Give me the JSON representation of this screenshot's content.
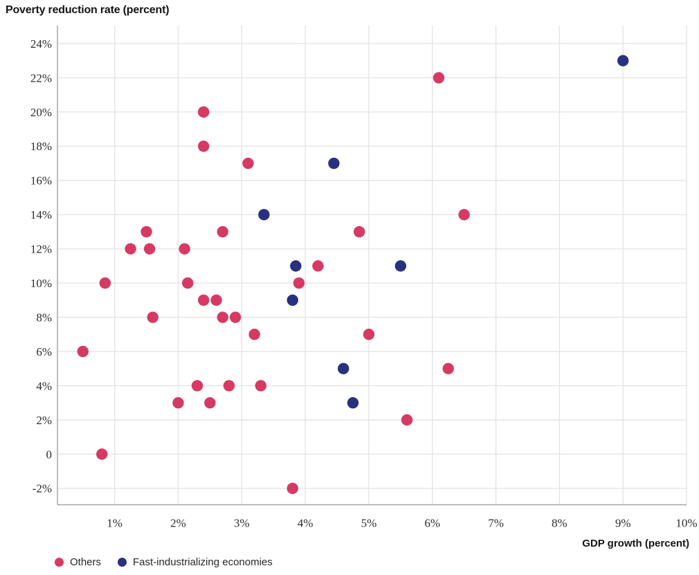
{
  "title": "Poverty reduction rate (percent)",
  "x_axis_title": "GDP growth (percent)",
  "legend": {
    "items": [
      {
        "label": "Others",
        "color": "#d63a63"
      },
      {
        "label": "Fast-industrializing economies",
        "color": "#28317e"
      }
    ],
    "position": "bottom-left"
  },
  "colors": {
    "others": "#d63a63",
    "fast_industrializing": "#28317e",
    "gridline": "#e4e4e4",
    "axis_line": "#a6a6a6",
    "tick_text": "#2b2b2b",
    "title_text": "#141414"
  },
  "chart_data": {
    "type": "scatter",
    "title": "Poverty reduction rate (percent)",
    "xlabel": "GDP growth (percent)",
    "ylabel": "Poverty reduction rate (percent)",
    "grid": true,
    "legend_position": "bottom-left",
    "xlim": [
      0.1,
      10.0
    ],
    "ylim": [
      -2.96,
      25.05
    ],
    "x_ticks": [
      1,
      2,
      3,
      4,
      5,
      6,
      7,
      8,
      9,
      10
    ],
    "x_tick_labels": [
      "1%",
      "2%",
      "3%",
      "4%",
      "5%",
      "6%",
      "7%",
      "8%",
      "9%",
      "10%"
    ],
    "y_ticks": [
      24,
      22,
      20,
      18,
      16,
      14,
      12,
      10,
      8,
      6,
      4,
      2,
      0,
      -2
    ],
    "y_tick_labels": [
      "24%",
      "22%",
      "20%",
      "18%",
      "16%",
      "14%",
      "12%",
      "10%",
      "8%",
      "6%",
      "4%",
      "2%",
      "0",
      "-2%"
    ],
    "series": [
      {
        "name": "Others",
        "color": "#d63a63",
        "points": [
          [
            0.5,
            6
          ],
          [
            0.8,
            0
          ],
          [
            0.85,
            10
          ],
          [
            1.25,
            12
          ],
          [
            1.5,
            13
          ],
          [
            1.55,
            12
          ],
          [
            1.6,
            8
          ],
          [
            2.0,
            3
          ],
          [
            2.1,
            12
          ],
          [
            2.15,
            10
          ],
          [
            2.3,
            4
          ],
          [
            2.4,
            20
          ],
          [
            2.4,
            18
          ],
          [
            2.4,
            9
          ],
          [
            2.5,
            3
          ],
          [
            2.6,
            9
          ],
          [
            2.7,
            13
          ],
          [
            2.7,
            8
          ],
          [
            2.8,
            4
          ],
          [
            2.9,
            8
          ],
          [
            3.1,
            17
          ],
          [
            3.2,
            7
          ],
          [
            3.3,
            4
          ],
          [
            3.8,
            -2
          ],
          [
            3.9,
            10
          ],
          [
            4.2,
            11
          ],
          [
            4.85,
            13
          ],
          [
            5.0,
            7
          ],
          [
            5.6,
            2
          ],
          [
            6.1,
            22
          ],
          [
            6.25,
            5
          ],
          [
            6.5,
            14
          ]
        ]
      },
      {
        "name": "Fast-industrializing economies",
        "color": "#28317e",
        "points": [
          [
            3.35,
            14
          ],
          [
            3.8,
            9
          ],
          [
            3.85,
            11
          ],
          [
            4.45,
            17
          ],
          [
            4.6,
            5
          ],
          [
            4.75,
            3
          ],
          [
            5.5,
            11
          ],
          [
            9.0,
            23
          ]
        ]
      }
    ]
  }
}
